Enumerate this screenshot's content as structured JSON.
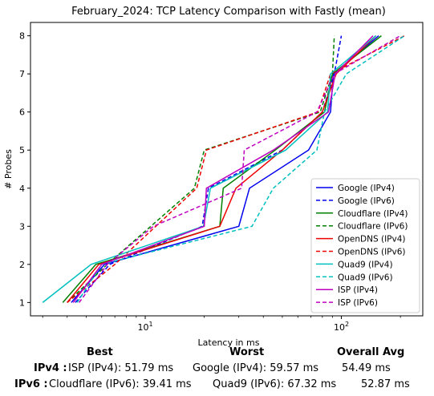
{
  "chart_data": {
    "type": "line",
    "title": "February_2024: TCP Latency Comparison with Fastly (mean)",
    "xlabel": "Latency in ms",
    "ylabel": "# Probes",
    "xscale": "log",
    "xlim": [
      2.6,
      260
    ],
    "ylim": [
      0.65,
      8.35
    ],
    "x_ticks": [
      {
        "value": 10,
        "label": "10^1"
      },
      {
        "value": 100,
        "label": "10^2"
      }
    ],
    "y_ticks": [
      1,
      2,
      3,
      4,
      5,
      6,
      7,
      8
    ],
    "legend_position": "lower right",
    "grid": false,
    "series": [
      {
        "name": "Google (IPv4)",
        "color": "#0000ee",
        "dash": "solid",
        "points": [
          [
            4.2,
            1
          ],
          [
            6.2,
            2
          ],
          [
            30,
            3
          ],
          [
            34,
            4
          ],
          [
            68,
            5
          ],
          [
            88,
            6
          ],
          [
            91,
            7
          ],
          [
            155,
            8
          ]
        ]
      },
      {
        "name": "Google (IPv6)",
        "color": "#0000ee",
        "dash": "dashed",
        "points": [
          [
            4.4,
            1
          ],
          [
            6.6,
            2
          ],
          [
            19.5,
            3
          ],
          [
            21,
            4
          ],
          [
            50,
            5
          ],
          [
            80,
            6
          ],
          [
            92,
            7
          ],
          [
            100,
            8
          ]
        ]
      },
      {
        "name": "Cloudflare (IPv4)",
        "color": "#008000",
        "dash": "solid",
        "points": [
          [
            3.8,
            1
          ],
          [
            5.6,
            2
          ],
          [
            24,
            3
          ],
          [
            25,
            4
          ],
          [
            46,
            5
          ],
          [
            82,
            6
          ],
          [
            90,
            7
          ],
          [
            160,
            8
          ]
        ]
      },
      {
        "name": "Cloudflare (IPv6)",
        "color": "#008000",
        "dash": "dashed",
        "points": [
          [
            4.0,
            1
          ],
          [
            6.4,
            2
          ],
          [
            17.8,
            4
          ],
          [
            20,
            5
          ],
          [
            78,
            6
          ],
          [
            90,
            7
          ],
          [
            92,
            8
          ]
        ]
      },
      {
        "name": "OpenDNS (IPv4)",
        "color": "#ee0000",
        "dash": "solid",
        "points": [
          [
            4.0,
            1
          ],
          [
            5.8,
            2
          ],
          [
            24,
            3
          ],
          [
            29,
            4
          ],
          [
            50,
            5
          ],
          [
            80,
            6
          ],
          [
            94,
            7
          ],
          [
            150,
            8
          ]
        ]
      },
      {
        "name": "OpenDNS (IPv6)",
        "color": "#ee0000",
        "dash": "dashed",
        "points": [
          [
            4.0,
            1
          ],
          [
            7,
            2
          ],
          [
            18.3,
            4
          ],
          [
            20.5,
            5
          ],
          [
            76,
            6
          ],
          [
            88,
            7
          ],
          [
            210,
            8
          ]
        ]
      },
      {
        "name": "Quad9 (IPv4)",
        "color": "#00bfbf",
        "dash": "solid",
        "points": [
          [
            3.0,
            1
          ],
          [
            5.3,
            2
          ],
          [
            19.8,
            3
          ],
          [
            21.5,
            4
          ],
          [
            52,
            5
          ],
          [
            85,
            6
          ],
          [
            88,
            7
          ],
          [
            150,
            8
          ]
        ]
      },
      {
        "name": "Quad9 (IPv6)",
        "color": "#00bfbf",
        "dash": "dashed",
        "points": [
          [
            4.5,
            1
          ],
          [
            6,
            2
          ],
          [
            35,
            3
          ],
          [
            45,
            4
          ],
          [
            75,
            5
          ],
          [
            82,
            6
          ],
          [
            106,
            7
          ],
          [
            210,
            8
          ]
        ]
      },
      {
        "name": "ISP (IPv4)",
        "color": "#bf00bf",
        "dash": "solid",
        "points": [
          [
            4.3,
            1
          ],
          [
            6,
            2
          ],
          [
            20,
            3
          ],
          [
            20.5,
            4
          ],
          [
            45,
            5
          ],
          [
            86,
            6
          ],
          [
            93,
            7
          ],
          [
            145,
            8
          ]
        ]
      },
      {
        "name": "ISP (IPv6)",
        "color": "#bf00bf",
        "dash": "dashed",
        "points": [
          [
            4.6,
            1
          ],
          [
            6.4,
            2
          ],
          [
            11,
            3
          ],
          [
            31,
            4
          ],
          [
            32,
            5
          ],
          [
            75,
            6
          ],
          [
            92,
            7
          ],
          [
            200,
            8
          ]
        ]
      }
    ]
  },
  "summary": {
    "headers": {
      "best": "Best",
      "worst": "Worst",
      "overall": "Overall Avg"
    },
    "rows": [
      {
        "label": "IPv4 :",
        "best": "ISP (IPv4): 51.79 ms",
        "worst": "Google (IPv4): 59.57 ms",
        "overall": "54.49 ms"
      },
      {
        "label": "IPv6 :",
        "best": "Cloudflare (IPv6): 39.41 ms",
        "worst": "Quad9 (IPv6): 67.32 ms",
        "overall": "52.87 ms"
      }
    ]
  }
}
